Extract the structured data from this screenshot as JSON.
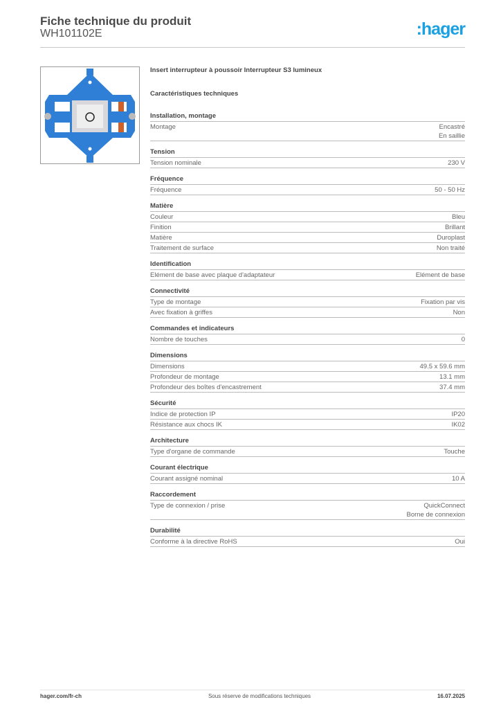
{
  "header": {
    "title": "Fiche technique du produit",
    "code": "WH101102E",
    "logo": "hager"
  },
  "product": {
    "name": "Insert interrupteur à poussoir Interrupteur S3 lumineux",
    "section_heading": "Caractéristiques techniques"
  },
  "sections": [
    {
      "title": "Installation, montage",
      "rows": [
        {
          "label": "Montage",
          "value": [
            "Encastré",
            "En saillie"
          ]
        }
      ]
    },
    {
      "title": "Tension",
      "rows": [
        {
          "label": "Tension nominale",
          "value": [
            "230 V"
          ]
        }
      ]
    },
    {
      "title": "Fréquence",
      "rows": [
        {
          "label": "Fréquence",
          "value": [
            "50 - 50 Hz"
          ]
        }
      ]
    },
    {
      "title": "Matière",
      "rows": [
        {
          "label": "Couleur",
          "value": [
            "Bleu"
          ]
        },
        {
          "label": "Finition",
          "value": [
            "Brillant"
          ]
        },
        {
          "label": "Matière",
          "value": [
            "Duroplast"
          ]
        },
        {
          "label": "Traitement de surface",
          "value": [
            "Non traité"
          ]
        }
      ]
    },
    {
      "title": "Identification",
      "rows": [
        {
          "label": "Elément de base avec plaque d'adaptateur",
          "value": [
            "Elément de base"
          ]
        }
      ]
    },
    {
      "title": "Connectivité",
      "rows": [
        {
          "label": "Type de montage",
          "value": [
            "Fixation par vis"
          ]
        },
        {
          "label": "Avec fixation à griffes",
          "value": [
            "Non"
          ]
        }
      ]
    },
    {
      "title": "Commandes et indicateurs",
      "rows": [
        {
          "label": "Nombre de touches",
          "value": [
            "0"
          ]
        }
      ]
    },
    {
      "title": "Dimensions",
      "rows": [
        {
          "label": "Dimensions",
          "value": [
            "49.5 x 59.6 mm"
          ]
        },
        {
          "label": "Profondeur de montage",
          "value": [
            "13.1 mm"
          ]
        },
        {
          "label": "Profondeur des boîtes d'encastrement",
          "value": [
            "37.4 mm"
          ]
        }
      ]
    },
    {
      "title": "Sécurité",
      "rows": [
        {
          "label": "Indice de protection IP",
          "value": [
            "IP20"
          ]
        },
        {
          "label": "Résistance aux chocs IK",
          "value": [
            "IK02"
          ]
        }
      ]
    },
    {
      "title": "Architecture",
      "rows": [
        {
          "label": "Type d'organe de commande",
          "value": [
            "Touche"
          ]
        }
      ]
    },
    {
      "title": "Courant électrique",
      "rows": [
        {
          "label": "Courant assigné nominal",
          "value": [
            "10 A"
          ]
        }
      ]
    },
    {
      "title": "Raccordement",
      "rows": [
        {
          "label": "Type de connexion / prise",
          "value": [
            "QuickConnect",
            "Borne de connexion"
          ]
        }
      ]
    },
    {
      "title": "Durabilité",
      "rows": [
        {
          "label": "Conforme à la directive RoHS",
          "value": [
            "Oui"
          ]
        }
      ]
    }
  ],
  "footer": {
    "website": "hager.com/fr-ch",
    "note": "Sous réserve de modifications techniques",
    "date": "16.07.2025"
  },
  "colors": {
    "brand": "#1ba0e2",
    "product_blue": "#2f7fd6"
  }
}
